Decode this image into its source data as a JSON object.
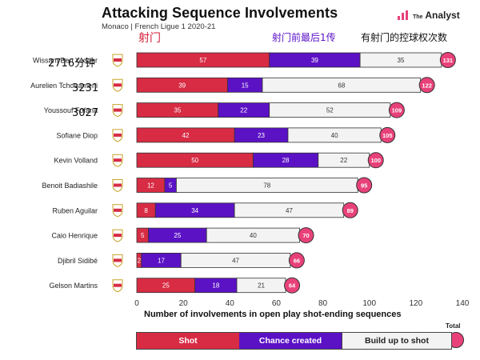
{
  "header": {
    "title": "Attacking Sequence Involvements",
    "subtitle": "Monaco | French Ligue 1 2020-21",
    "brand_the": "The",
    "brand_name": "Analyst"
  },
  "annotations": {
    "shot": "射门",
    "chance": "射门前最后1传",
    "total": "有射门的控球权次数",
    "note_1": "2716分钟",
    "note_2": "3231",
    "note_3": "3027"
  },
  "legend": {
    "shot": "Shot",
    "chance": "Chance created",
    "buildup": "Build up to shot",
    "total": "Total"
  },
  "colors": {
    "shot": "#d72c44",
    "chance": "#5b12c5",
    "buildup": "#f3f3f3",
    "total": "#e8417a"
  },
  "chart_data": {
    "type": "bar",
    "orientation": "horizontal",
    "stacked": true,
    "categories": [
      "Wissam Ben Yedder",
      "Aurelien Tchouameni",
      "Youssouf Fofana",
      "Sofiane Diop",
      "Kevin Volland",
      "Benoit Badiashile",
      "Ruben Aguilar",
      "Caio Henrique",
      "Djibril Sidibé",
      "Gelson Martins"
    ],
    "series": [
      {
        "name": "Shot",
        "values": [
          57,
          39,
          35,
          42,
          50,
          12,
          8,
          5,
          2,
          25
        ]
      },
      {
        "name": "Chance created",
        "values": [
          39,
          15,
          22,
          23,
          28,
          5,
          34,
          25,
          17,
          18
        ]
      },
      {
        "name": "Build up to shot",
        "values": [
          35,
          68,
          52,
          40,
          22,
          78,
          47,
          40,
          47,
          21
        ]
      }
    ],
    "totals": [
      131,
      122,
      109,
      105,
      100,
      95,
      89,
      70,
      66,
      64
    ],
    "xlabel": "Number of involvements in open play shot-ending sequences",
    "xlim": [
      0,
      140
    ],
    "xticks": [
      0,
      20,
      40,
      60,
      80,
      100,
      120,
      140
    ]
  }
}
